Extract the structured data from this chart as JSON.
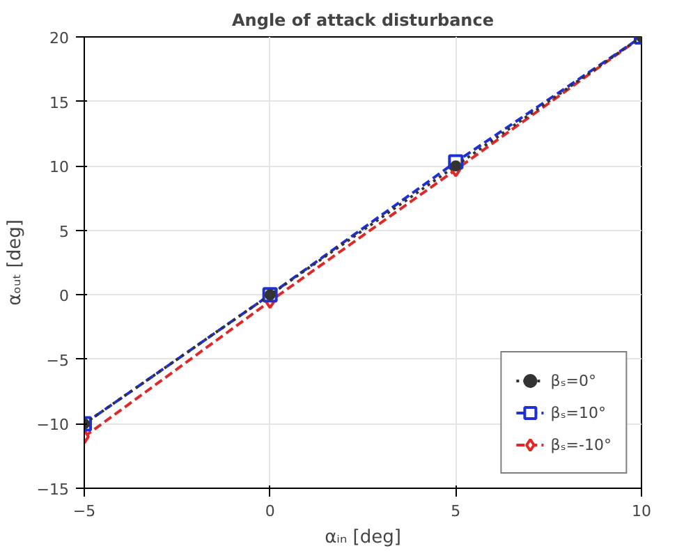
{
  "chart_data": {
    "type": "line",
    "title": "Angle of attack disturbance",
    "xlabel": "αᵢₙ [deg]",
    "ylabel": "αₒᵤₜ [deg]",
    "x": [
      -5,
      0,
      5,
      10
    ],
    "series": [
      {
        "name": "βₛ=0°",
        "color": "#333333",
        "values": [
          -10,
          0,
          10,
          20
        ],
        "marker": "circle",
        "line_style": "dotted"
      },
      {
        "name": "βₛ=10°",
        "color": "#1f2fd6",
        "values": [
          -10,
          0,
          10.3,
          20
        ],
        "marker": "square",
        "line_style": "dashed"
      },
      {
        "name": "βₛ=-10°",
        "color": "#e02828",
        "values": [
          -11,
          -0.5,
          9.7,
          20
        ],
        "marker": "diamond",
        "line_style": "dashed"
      }
    ],
    "xlim": [
      -5,
      10
    ],
    "xticks": [
      -5,
      0,
      5,
      10
    ],
    "ylim": [
      -15,
      20
    ],
    "yticks": [
      -15,
      -10,
      -5,
      0,
      5,
      10,
      15,
      20
    ],
    "grid": true,
    "legend": "bottom right"
  }
}
